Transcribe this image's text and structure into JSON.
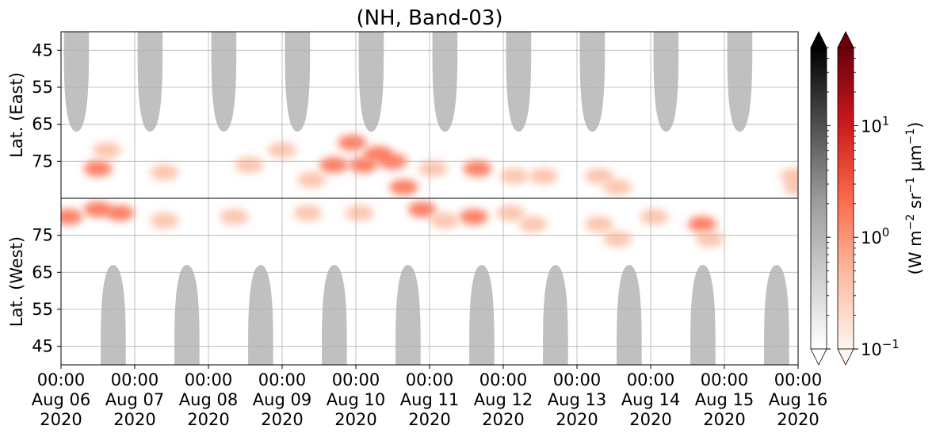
{
  "chart_data": {
    "type": "heatmap",
    "title": "(NH, Band-03)",
    "colorbar_label_text": "(W m",
    "colorbar_label_parts": [
      "(W m",
      "−2",
      " sr",
      "−1",
      " μm",
      "−1",
      ")"
    ],
    "panels": [
      {
        "name": "East",
        "ylabel": "Lat. (East)",
        "yticks": [
          45,
          55,
          65,
          75
        ],
        "ylim": [
          40,
          85
        ]
      },
      {
        "name": "West",
        "ylabel": "Lat. (West)",
        "yticks": [
          75,
          65,
          55,
          45
        ],
        "ylim": [
          85,
          40
        ]
      }
    ],
    "x_tick_labels": [
      [
        "00:00",
        "Aug 06",
        "2020"
      ],
      [
        "00:00",
        "Aug 07",
        "2020"
      ],
      [
        "00:00",
        "Aug 08",
        "2020"
      ],
      [
        "00:00",
        "Aug 09",
        "2020"
      ],
      [
        "00:00",
        "Aug 10",
        "2020"
      ],
      [
        "00:00",
        "Aug 11",
        "2020"
      ],
      [
        "00:00",
        "Aug 12",
        "2020"
      ],
      [
        "00:00",
        "Aug 13",
        "2020"
      ],
      [
        "00:00",
        "Aug 14",
        "2020"
      ],
      [
        "00:00",
        "Aug 15",
        "2020"
      ],
      [
        "00:00",
        "Aug 16",
        "2020"
      ]
    ],
    "xlim": [
      "2020-08-06 00:00",
      "2020-08-16 00:00"
    ],
    "grid": true,
    "colorbars": [
      {
        "name": "gray",
        "scale": "log",
        "extend": "both"
      },
      {
        "name": "reds",
        "scale": "log",
        "extend": "both",
        "tick_labels": [
          [
            "10",
            "1"
          ],
          [
            "10",
            "0"
          ],
          [
            "10",
            "−1"
          ]
        ],
        "tick_values": [
          10,
          1,
          0.1
        ],
        "range": [
          0.1,
          50
        ]
      }
    ],
    "daylight_cones_east": [
      {
        "center": "2020-08-06 05:00",
        "minlat": 67
      },
      {
        "center": "2020-08-07 05:00",
        "minlat": 67
      },
      {
        "center": "2020-08-08 05:00",
        "minlat": 67
      },
      {
        "center": "2020-08-09 05:00",
        "minlat": 67
      },
      {
        "center": "2020-08-10 05:00",
        "minlat": 67
      },
      {
        "center": "2020-08-11 05:00",
        "minlat": 67
      },
      {
        "center": "2020-08-12 05:00",
        "minlat": 67
      },
      {
        "center": "2020-08-13 05:00",
        "minlat": 67
      },
      {
        "center": "2020-08-14 05:00",
        "minlat": 67
      },
      {
        "center": "2020-08-15 05:00",
        "minlat": 67
      }
    ],
    "daylight_cones_west": [
      {
        "center": "2020-08-06 17:00",
        "minlat": 67
      },
      {
        "center": "2020-08-07 17:00",
        "minlat": 67
      },
      {
        "center": "2020-08-08 17:00",
        "minlat": 67
      },
      {
        "center": "2020-08-09 17:00",
        "minlat": 67
      },
      {
        "center": "2020-08-10 17:00",
        "minlat": 67
      },
      {
        "center": "2020-08-11 17:00",
        "minlat": 67
      },
      {
        "center": "2020-08-12 17:00",
        "minlat": 67
      },
      {
        "center": "2020-08-13 17:00",
        "minlat": 67
      },
      {
        "center": "2020-08-14 17:00",
        "minlat": 67
      },
      {
        "center": "2020-08-15 17:00",
        "minlat": 67
      }
    ],
    "radiance_blobs": [
      {
        "panel": "East",
        "day": 0.5,
        "lat": 77,
        "value": 3
      },
      {
        "panel": "East",
        "day": 0.62,
        "lat": 72,
        "value": 1
      },
      {
        "panel": "East",
        "day": 1.4,
        "lat": 78,
        "value": 0.6
      },
      {
        "panel": "East",
        "day": 2.55,
        "lat": 76,
        "value": 0.5
      },
      {
        "panel": "East",
        "day": 3.0,
        "lat": 72,
        "value": 0.4
      },
      {
        "panel": "East",
        "day": 3.4,
        "lat": 80,
        "value": 1
      },
      {
        "panel": "East",
        "day": 3.7,
        "lat": 76,
        "value": 1.5
      },
      {
        "panel": "East",
        "day": 3.95,
        "lat": 70,
        "value": 4
      },
      {
        "panel": "East",
        "day": 4.1,
        "lat": 76,
        "value": 2
      },
      {
        "panel": "East",
        "day": 4.3,
        "lat": 73,
        "value": 1.2
      },
      {
        "panel": "East",
        "day": 4.5,
        "lat": 75,
        "value": 1.4
      },
      {
        "panel": "East",
        "day": 4.65,
        "lat": 82,
        "value": 1.8
      },
      {
        "panel": "East",
        "day": 5.05,
        "lat": 77,
        "value": 1
      },
      {
        "panel": "East",
        "day": 5.65,
        "lat": 77,
        "value": 3
      },
      {
        "panel": "East",
        "day": 6.15,
        "lat": 79,
        "value": 0.6
      },
      {
        "panel": "East",
        "day": 6.55,
        "lat": 79,
        "value": 1
      },
      {
        "panel": "East",
        "day": 7.3,
        "lat": 79,
        "value": 0.7
      },
      {
        "panel": "East",
        "day": 7.55,
        "lat": 82,
        "value": 0.7
      },
      {
        "panel": "East",
        "day": 9.95,
        "lat": 79,
        "value": 0.6
      },
      {
        "panel": "East",
        "day": 10.0,
        "lat": 82,
        "value": 1
      },
      {
        "panel": "West",
        "day": 0.1,
        "lat": 80,
        "value": 2
      },
      {
        "panel": "West",
        "day": 0.5,
        "lat": 82,
        "value": 2.5
      },
      {
        "panel": "West",
        "day": 0.8,
        "lat": 81,
        "value": 2
      },
      {
        "panel": "West",
        "day": 1.4,
        "lat": 79,
        "value": 0.6
      },
      {
        "panel": "West",
        "day": 2.35,
        "lat": 80,
        "value": 0.4
      },
      {
        "panel": "West",
        "day": 3.35,
        "lat": 81,
        "value": 1
      },
      {
        "panel": "West",
        "day": 4.05,
        "lat": 81,
        "value": 0.6
      },
      {
        "panel": "West",
        "day": 4.9,
        "lat": 82,
        "value": 1.2
      },
      {
        "panel": "West",
        "day": 5.2,
        "lat": 79,
        "value": 0.8
      },
      {
        "panel": "West",
        "day": 5.6,
        "lat": 80,
        "value": 1.5
      },
      {
        "panel": "West",
        "day": 6.1,
        "lat": 81,
        "value": 0.5
      },
      {
        "panel": "West",
        "day": 6.4,
        "lat": 78,
        "value": 0.4
      },
      {
        "panel": "West",
        "day": 7.3,
        "lat": 78,
        "value": 0.5
      },
      {
        "panel": "West",
        "day": 7.55,
        "lat": 74,
        "value": 0.5
      },
      {
        "panel": "West",
        "day": 8.05,
        "lat": 80,
        "value": 0.3
      },
      {
        "panel": "West",
        "day": 8.7,
        "lat": 78,
        "value": 1.2
      },
      {
        "panel": "West",
        "day": 8.8,
        "lat": 74,
        "value": 0.4
      }
    ]
  }
}
